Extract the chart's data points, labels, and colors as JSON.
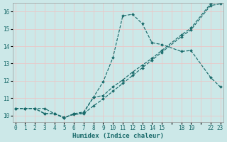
{
  "xlabel": "Humidex (Indice chaleur)",
  "bg_color": "#cce8e8",
  "grid_color": "#e8c8c8",
  "line_color": "#1a6b6b",
  "xtick_labels": [
    "0",
    "1",
    "2",
    "3",
    "4",
    "5",
    "6",
    "7",
    "8",
    "9",
    "10",
    "11",
    "12",
    "13",
    "14",
    "15",
    "",
    "18",
    "19",
    "",
    "22",
    "23"
  ],
  "xtick_positions": [
    0,
    1,
    2,
    3,
    4,
    5,
    6,
    7,
    8,
    9,
    10,
    11,
    12,
    13,
    14,
    15,
    16,
    17,
    18,
    19,
    20,
    21
  ],
  "yticks": [
    10,
    11,
    12,
    13,
    14,
    15,
    16
  ],
  "ylim": [
    9.6,
    16.5
  ],
  "xlim": [
    -0.3,
    21.3
  ],
  "series": [
    {
      "xi": [
        0,
        1,
        2,
        3,
        4,
        5,
        6,
        7,
        8,
        9,
        10,
        11,
        12,
        13,
        14,
        15,
        17,
        18,
        20,
        21
      ],
      "y": [
        10.4,
        10.4,
        10.4,
        10.1,
        10.1,
        9.85,
        10.1,
        10.15,
        11.05,
        11.95,
        13.35,
        15.75,
        15.85,
        15.3,
        14.2,
        14.1,
        13.7,
        13.75,
        12.2,
        11.65
      ]
    },
    {
      "xi": [
        0,
        1,
        2,
        3,
        4,
        5,
        6,
        7,
        8,
        9,
        10,
        11,
        12,
        13,
        14,
        15,
        17,
        18,
        20,
        21
      ],
      "y": [
        10.4,
        10.4,
        10.4,
        10.1,
        10.1,
        9.9,
        10.05,
        10.1,
        10.55,
        10.95,
        11.4,
        11.85,
        12.3,
        12.75,
        13.2,
        13.65,
        14.55,
        14.95,
        16.35,
        16.45
      ]
    },
    {
      "xi": [
        0,
        1,
        2,
        3,
        4,
        5,
        6,
        7,
        8,
        9,
        10,
        11,
        12,
        13,
        14,
        15,
        17,
        18,
        20,
        21
      ],
      "y": [
        10.4,
        10.4,
        10.4,
        10.4,
        10.1,
        9.85,
        10.1,
        10.2,
        11.05,
        11.15,
        11.65,
        12.05,
        12.5,
        12.9,
        13.3,
        13.75,
        14.65,
        15.05,
        16.45,
        16.6
      ]
    }
  ],
  "tick_fontsize": 5.5,
  "xlabel_fontsize": 6.5
}
